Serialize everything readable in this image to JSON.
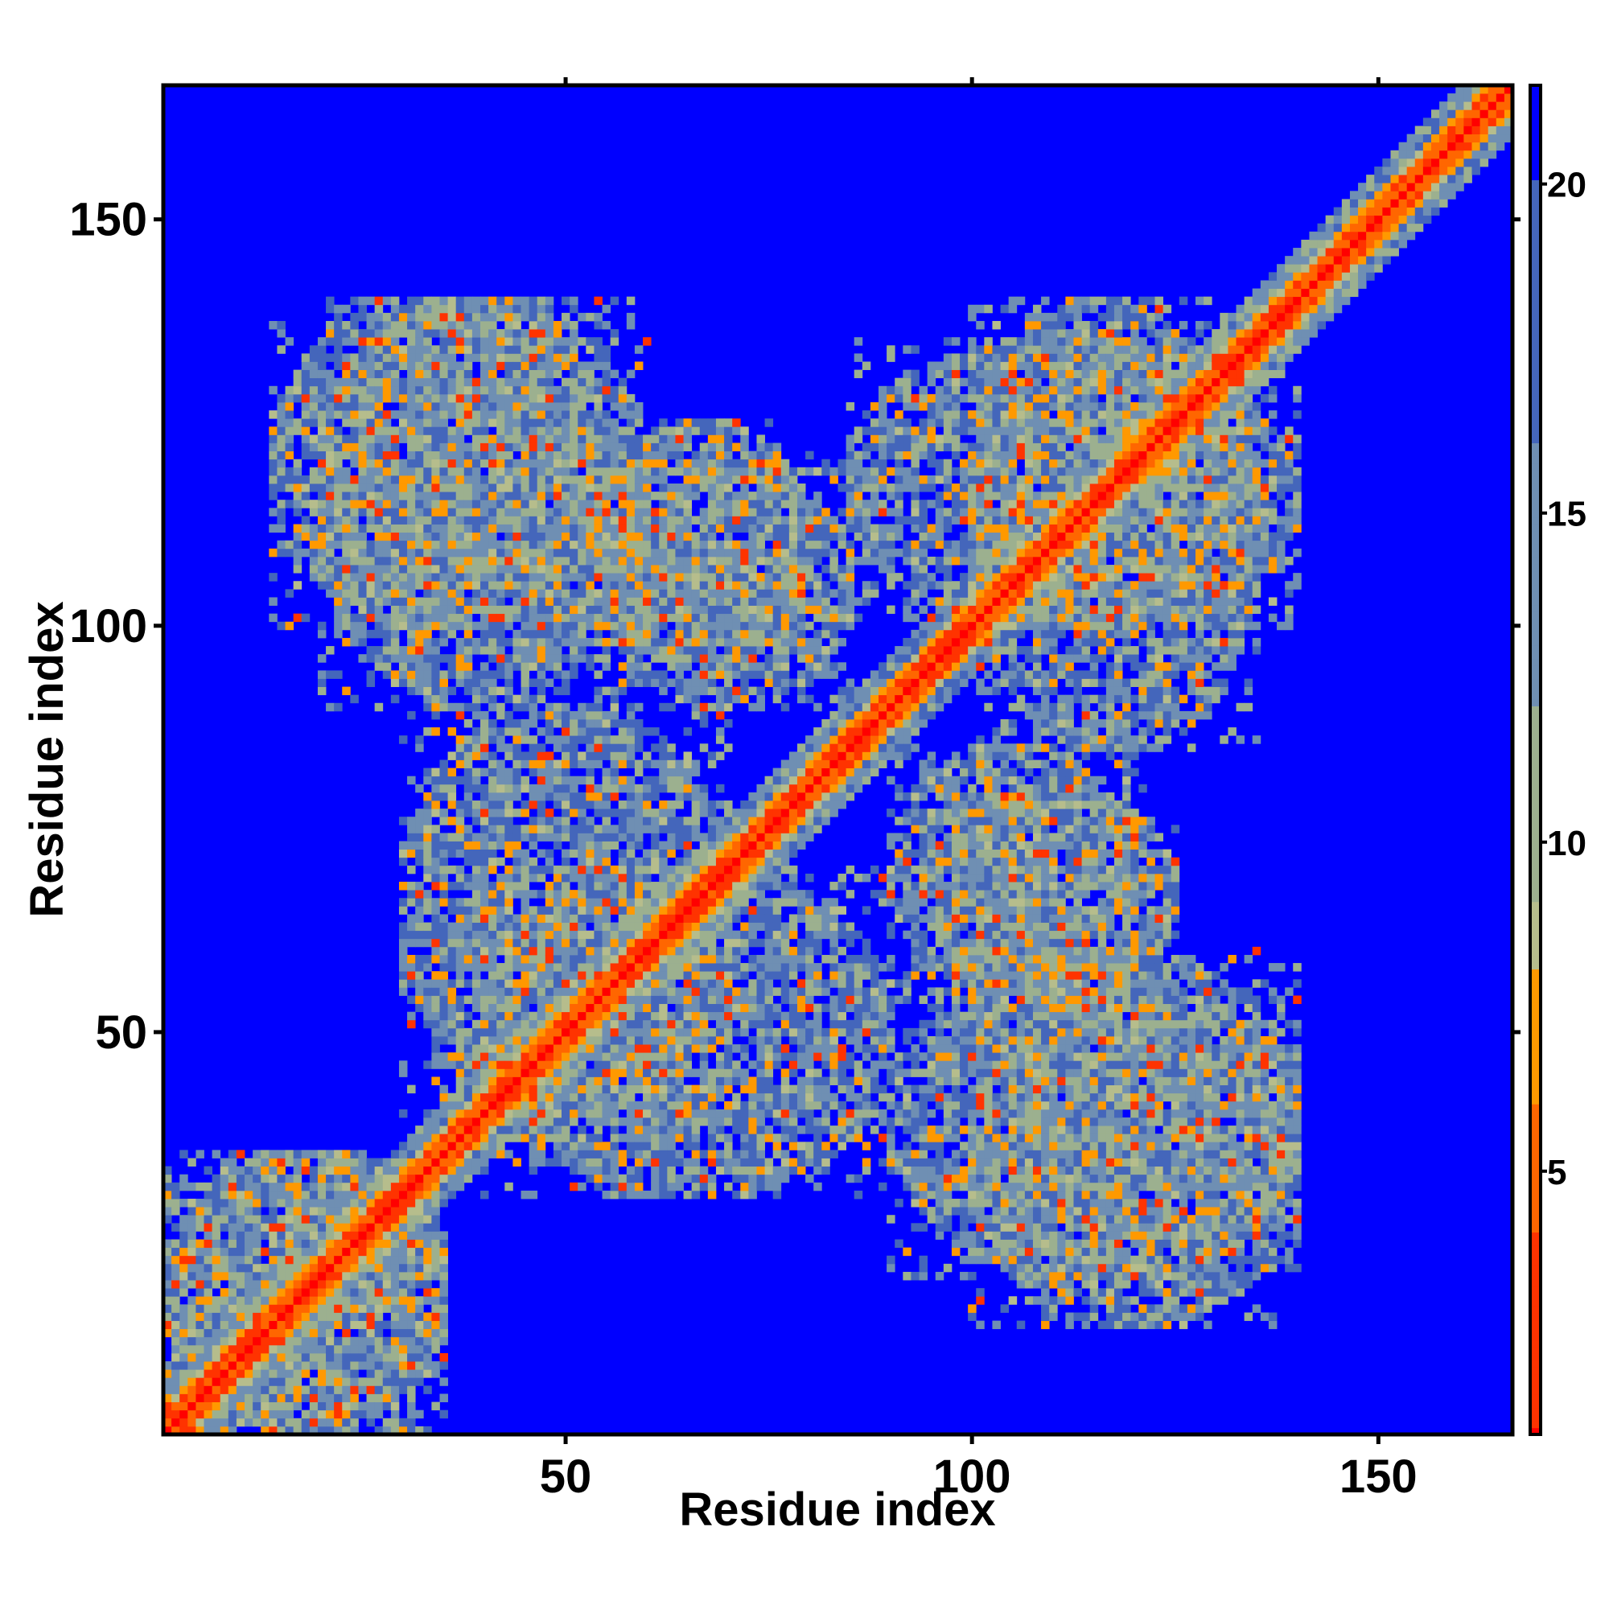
{
  "chart_data": {
    "type": "heatmap",
    "xlabel": "Residue index",
    "ylabel": "Residue index",
    "n": 166,
    "xlim": [
      0.5,
      166.5
    ],
    "ylim": [
      0.5,
      166.5
    ],
    "xticks": [
      50,
      100,
      150
    ],
    "yticks": [
      50,
      100,
      150
    ],
    "tick_labels": {
      "50": "50",
      "100": "100",
      "150": "150"
    },
    "colorbar": {
      "range": [
        1,
        21.5
      ],
      "ticks": [
        5,
        10,
        15,
        20
      ],
      "tick_labels": [
        "5",
        "10",
        "15",
        "20"
      ],
      "colors": [
        {
          "value": 1,
          "color": "#ff0000"
        },
        {
          "value": 4,
          "color": "#ff3300"
        },
        {
          "value": 6,
          "color": "#ff6600"
        },
        {
          "value": 8,
          "color": "#ff9900"
        },
        {
          "value": 9,
          "color": "#b6bd8c"
        },
        {
          "value": 12,
          "color": "#9cb08f"
        },
        {
          "value": 16,
          "color": "#6f8fb3"
        },
        {
          "value": 20,
          "color": "#4466bb"
        },
        {
          "value": 21.5,
          "color": "#0000ff"
        }
      ],
      "background_color": "#0000ff"
    },
    "description_of_values": "Symmetric distance map; diagonal band near 1-4, contact regions 9-20, background >= 21",
    "diagonal_band": [
      1,
      4
    ],
    "contact_regions": [
      {
        "x": [
          14,
          55
        ],
        "y": [
          100,
          140
        ]
      },
      {
        "x": [
          55,
          80
        ],
        "y": [
          95,
          125
        ]
      },
      {
        "x": [
          30,
          70
        ],
        "y": [
          40,
          90
        ]
      },
      {
        "x": [
          90,
          140
        ],
        "y": [
          20,
          60
        ]
      },
      {
        "x": [
          90,
          120
        ],
        "y": [
          55,
          85
        ]
      },
      {
        "x": [
          100,
          135
        ],
        "y": [
          85,
          140
        ]
      },
      {
        "x": [
          1,
          35
        ],
        "y": [
          1,
          35
        ]
      }
    ]
  }
}
